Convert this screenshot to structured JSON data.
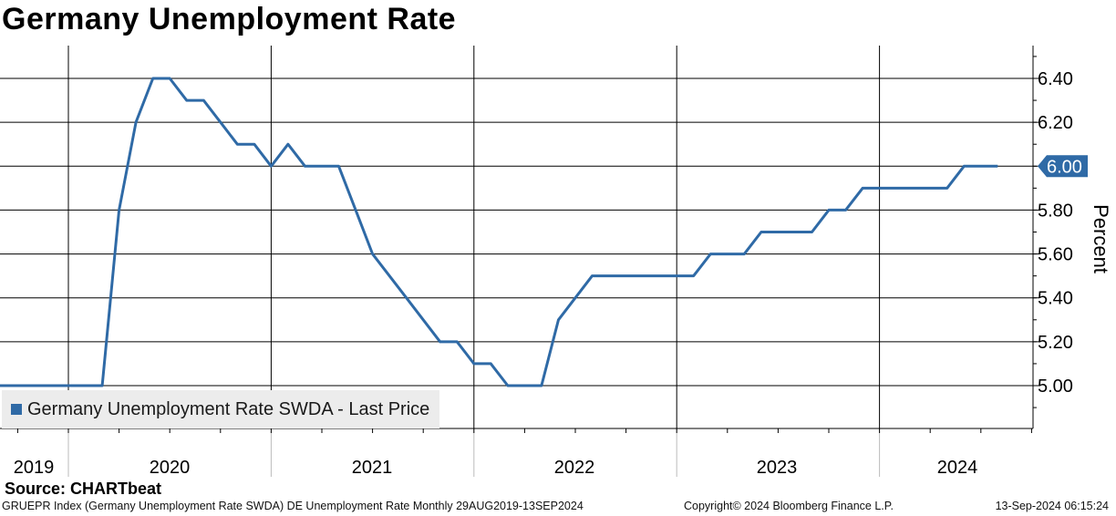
{
  "title": "Germany Unemployment Rate",
  "y_axis_label": "Percent",
  "legend_label": "Germany Unemployment Rate SWDA - Last Price",
  "source": "Source: CHARTbeat",
  "footer": {
    "left": "GRUEPR Index (Germany Unemployment Rate SWDA) DE Unemployment Rate  Monthly 29AUG2019-13SEP2024",
    "middle": "Copyright© 2024 Bloomberg Finance L.P.",
    "right": "13-Sep-2024 06:15:24"
  },
  "colors": {
    "series": "#2f6aa6",
    "badge": "#2f6aa6"
  },
  "chart_data": {
    "type": "line",
    "ylabel": "Percent",
    "ylim": [
      4.8,
      6.55
    ],
    "y_ticks": [
      "6.40",
      "6.20",
      "6.00",
      "5.80",
      "5.60",
      "5.40",
      "5.20",
      "5.00"
    ],
    "x_tick_labels": [
      "2019",
      "2020",
      "2021",
      "2022",
      "2023",
      "2024"
    ],
    "last_value_label": "6.00",
    "legend_position": "bottom-left",
    "grid": true,
    "series": [
      {
        "name": "Germany Unemployment Rate SWDA - Last Price",
        "x": [
          "2019-08",
          "2019-09",
          "2019-10",
          "2019-11",
          "2019-12",
          "2020-01",
          "2020-02",
          "2020-03",
          "2020-04",
          "2020-05",
          "2020-06",
          "2020-07",
          "2020-08",
          "2020-09",
          "2020-10",
          "2020-11",
          "2020-12",
          "2021-01",
          "2021-02",
          "2021-03",
          "2021-04",
          "2021-05",
          "2021-06",
          "2021-07",
          "2021-08",
          "2021-09",
          "2021-10",
          "2021-11",
          "2021-12",
          "2022-01",
          "2022-02",
          "2022-03",
          "2022-04",
          "2022-05",
          "2022-06",
          "2022-07",
          "2022-08",
          "2022-09",
          "2022-10",
          "2022-11",
          "2022-12",
          "2023-01",
          "2023-02",
          "2023-03",
          "2023-04",
          "2023-05",
          "2023-06",
          "2023-07",
          "2023-08",
          "2023-09",
          "2023-10",
          "2023-11",
          "2023-12",
          "2024-01",
          "2024-02",
          "2024-03",
          "2024-04",
          "2024-05",
          "2024-06",
          "2024-07",
          "2024-08"
        ],
        "values": [
          5.0,
          5.0,
          5.0,
          5.0,
          5.0,
          5.0,
          5.0,
          5.0,
          5.8,
          6.2,
          6.4,
          6.4,
          6.3,
          6.3,
          6.2,
          6.1,
          6.1,
          6.0,
          6.1,
          6.0,
          6.0,
          6.0,
          5.8,
          5.6,
          5.5,
          5.4,
          5.3,
          5.2,
          5.2,
          5.1,
          5.1,
          5.0,
          5.0,
          5.0,
          5.3,
          5.4,
          5.5,
          5.5,
          5.5,
          5.5,
          5.5,
          5.5,
          5.5,
          5.6,
          5.6,
          5.6,
          5.7,
          5.7,
          5.7,
          5.7,
          5.8,
          5.8,
          5.9,
          5.9,
          5.9,
          5.9,
          5.9,
          5.9,
          6.0,
          6.0,
          6.0
        ]
      }
    ]
  }
}
